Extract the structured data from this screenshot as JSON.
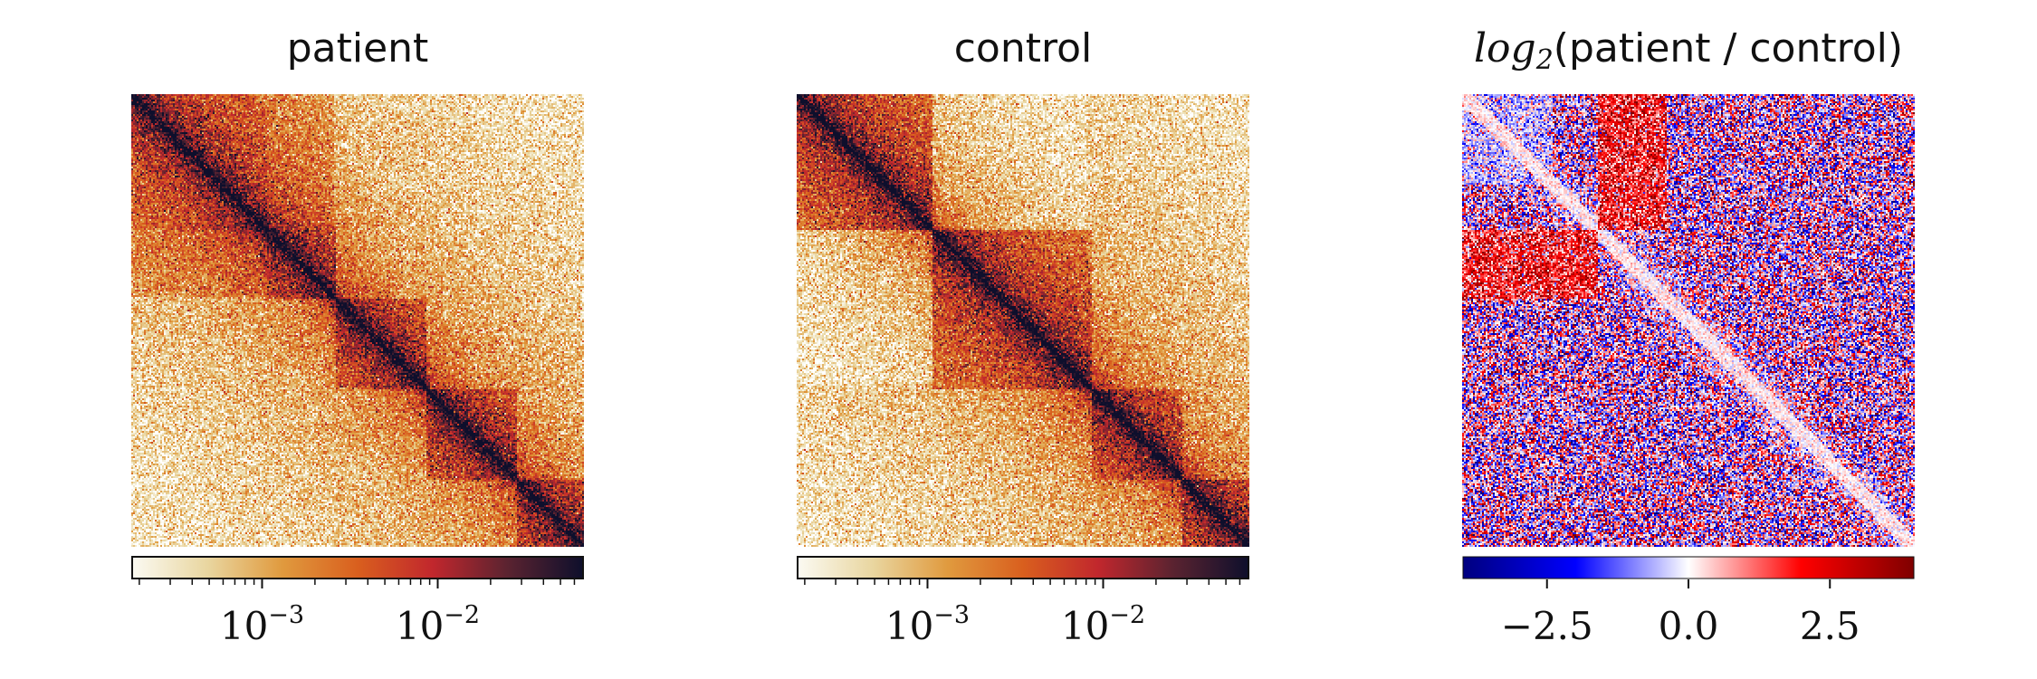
{
  "chart_data": [
    {
      "type": "heatmap",
      "title": "patient",
      "scale": "log",
      "colorbar_range": [
        0.00018,
        0.068
      ],
      "colorbar_ticks": [
        {
          "value": 0.001,
          "base": "10",
          "exponent": "−3"
        },
        {
          "value": 0.01,
          "base": "10",
          "exponent": "−2"
        }
      ],
      "colormap": [
        "#fbfaf2",
        "#e9d6a0",
        "#e09a3e",
        "#d95f1e",
        "#c1272d",
        "#5a2330",
        "#0e0f2c"
      ],
      "structure": {
        "domains": [
          [
            0,
            0.3
          ],
          [
            0.3,
            0.45
          ],
          [
            0.45,
            0.65
          ],
          [
            0.65,
            0.85
          ],
          [
            0.85,
            1.0
          ]
        ],
        "notes": "strong diagonal, nested square domains along diagonal"
      }
    },
    {
      "type": "heatmap",
      "title": "control",
      "scale": "log",
      "colorbar_range": [
        0.00018,
        0.068
      ],
      "colorbar_ticks": [
        {
          "value": 0.001,
          "base": "10",
          "exponent": "−3"
        },
        {
          "value": 0.01,
          "base": "10",
          "exponent": "−2"
        }
      ],
      "colormap": [
        "#fbfaf2",
        "#e9d6a0",
        "#e09a3e",
        "#d95f1e",
        "#c1272d",
        "#5a2330",
        "#0e0f2c"
      ],
      "structure": {
        "domains": [
          [
            0,
            0.3
          ],
          [
            0.3,
            0.65
          ],
          [
            0.65,
            0.85
          ],
          [
            0.85,
            1.0
          ]
        ],
        "notes": "strong diagonal, weaker off-diagonal block at rows 0.3–0.65"
      }
    },
    {
      "type": "heatmap",
      "title_math": "log",
      "title_sub": "2",
      "title_text": "(patient / control)",
      "scale": "linear",
      "colorbar_range": [
        -4,
        4
      ],
      "colorbar_ticks": [
        {
          "value": -2.5,
          "label": "−2.5"
        },
        {
          "value": 0.0,
          "label": "0.0"
        },
        {
          "value": 2.5,
          "label": "2.5"
        }
      ],
      "colormap": [
        "#00007f",
        "#0000ff",
        "#ffffff",
        "#ff0000",
        "#7f0000"
      ],
      "structure": {
        "enriched_block": {
          "rows": [
            0.3,
            0.45
          ],
          "cols": [
            0.0,
            0.3
          ],
          "sign": "positive"
        },
        "diagonal": "near zero (light)"
      }
    }
  ]
}
